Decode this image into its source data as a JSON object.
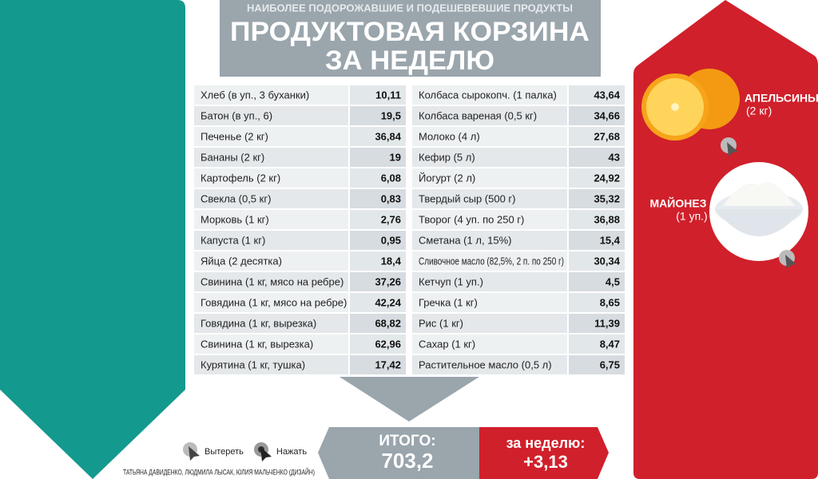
{
  "header": {
    "subtitle": "НАИБОЛЕЕ ПОДОРОЖАВШИЕ И ПОДЕШЕВЕВШИЕ ПРОДУКТЫ",
    "title_line1": "ПРОДУКТОВАЯ КОРЗИНА",
    "title_line2": "ЗА НЕДЕЛЮ"
  },
  "table": {
    "left": [
      [
        "Хлеб (в уп., 3 буханки)",
        "10,11"
      ],
      [
        "Батон (в уп., 6)",
        "19,5"
      ],
      [
        "Печенье (2 кг)",
        "36,84"
      ],
      [
        "Бананы (2 кг)",
        "19"
      ],
      [
        "Картофель (2 кг)",
        "6,08"
      ],
      [
        "Свекла (0,5 кг)",
        "0,83"
      ],
      [
        "Морковь (1 кг)",
        "2,76"
      ],
      [
        "Капуста (1 кг)",
        "0,95"
      ],
      [
        "Яйца (2 десятка)",
        "18,4"
      ],
      [
        "Свинина (1 кг, мясо на ребре)",
        "37,26"
      ],
      [
        "Говядина (1 кг, мясо на ребре)",
        "42,24"
      ],
      [
        "Говядина (1 кг, вырезка)",
        "68,82"
      ],
      [
        "Свинина (1 кг, вырезка)",
        "62,96"
      ],
      [
        "Курятина (1 кг, тушка)",
        "17,42"
      ]
    ],
    "right": [
      [
        "Колбаса сырокопч. (1 палка)",
        "43,64"
      ],
      [
        "Колбаса вареная (0,5 кг)",
        "34,66"
      ],
      [
        "Молоко (4 л)",
        "27,68"
      ],
      [
        "Кефир (5 л)",
        "43"
      ],
      [
        "Йогурт (2 л)",
        "24,92"
      ],
      [
        "Твердый сыр (500 г)",
        "35,32"
      ],
      [
        "Творог (4 уп. по 250 г)",
        "36,88"
      ],
      [
        "Сметана (1 л, 15%)",
        "15,4"
      ],
      [
        "Сливочное масло (82,5%, 2 п. по 250 г)",
        "30,34"
      ],
      [
        "Кетчуп (1 уп.)",
        "4,5"
      ],
      [
        "Гречка (1 кг)",
        "8,65"
      ],
      [
        "Рис (1 кг)",
        "11,39"
      ],
      [
        "Сахар (1 кг)",
        "8,47"
      ],
      [
        "Растительное масло (0,5 л)",
        "6,75"
      ]
    ]
  },
  "total": {
    "label": "ИТОГО:",
    "value": "703,2"
  },
  "change": {
    "label": "за неделю:",
    "value": "+3,13"
  },
  "highlights": [
    {
      "name": "АПЕЛЬСИНЫ",
      "amount": "(2 кг)"
    },
    {
      "name": "МАЙОНЕЗ",
      "amount": "(1 уп.)"
    }
  ],
  "controls": [
    "Вытереть",
    "Нажать"
  ],
  "credits": "ТАТЬЯНА ДАВИДЕНКО, ЛЮДМИЛА ЛЫСАК, ЮЛИЯ МАЛЬЧЕНКО (ДИЗАЙН)"
}
